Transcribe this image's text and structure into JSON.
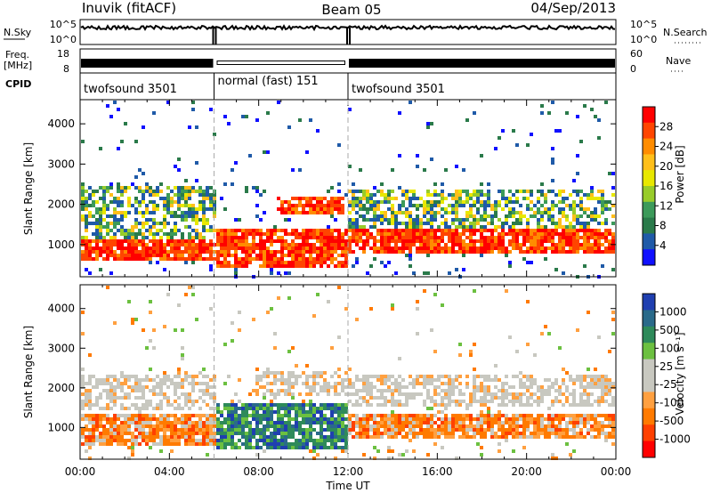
{
  "header": {
    "station": "Inuvik (fitACF)",
    "beam": "Beam 05",
    "date": "04/Sep/2013"
  },
  "noise_panel": {
    "left_label": "N.Sky",
    "left_ticks": [
      "10^5",
      "10^0"
    ],
    "right_label": "N.Search",
    "right_ticks": [
      "10^5",
      "10^0"
    ]
  },
  "freq_panel": {
    "left_label_top": "Freq.",
    "left_label_bottom": "[MHz]",
    "left_ticks": [
      "18",
      "8"
    ],
    "right_label": "Nave",
    "right_ticks": [
      "60",
      "0"
    ]
  },
  "cpid": {
    "label": "CPID",
    "segments": [
      {
        "name": "twofsound 3501",
        "start_hour": 0,
        "end_hour": 6
      },
      {
        "name": "normal (fast) 151",
        "start_hour": 6,
        "end_hour": 12
      },
      {
        "name": "twofsound 3501",
        "start_hour": 12,
        "end_hour": 24
      }
    ]
  },
  "x_axis": {
    "label": "Time UT",
    "range_hours": [
      0,
      24
    ],
    "ticks": [
      {
        "hour": 0,
        "label": "00:00"
      },
      {
        "hour": 4,
        "label": "04:00"
      },
      {
        "hour": 8,
        "label": "08:00"
      },
      {
        "hour": 12,
        "label": "12:00"
      },
      {
        "hour": 16,
        "label": "16:00"
      },
      {
        "hour": 20,
        "label": "20:00"
      },
      {
        "hour": 24,
        "label": "00:00"
      }
    ]
  },
  "chart_data": [
    {
      "type": "heatmap",
      "name": "power",
      "ylabel": "Slant Range [km]",
      "ylim": [
        200,
        4600
      ],
      "yticks": [
        1000,
        2000,
        3000,
        4000
      ],
      "colorbar_label": "Power [dB]",
      "colorbar_ticks": [
        "28",
        "24",
        "20",
        "16",
        "12",
        "8",
        "4"
      ],
      "colorbar_colors": [
        "#ff0000",
        "#ff4500",
        "#ff8c00",
        "#ffbf1a",
        "#e8e800",
        "#98cc2a",
        "#3c9a5a",
        "#2a7a4a",
        "#1f5aa8",
        "#1010ff"
      ],
      "regions": [
        {
          "t0": 0.0,
          "t1": 6.0,
          "r0": 600,
          "r1": 1200,
          "level": "high"
        },
        {
          "t0": 0.0,
          "t1": 6.0,
          "r0": 1200,
          "r1": 2500,
          "level": "mid"
        },
        {
          "t0": 6.0,
          "t1": 12.0,
          "r0": 500,
          "r1": 1400,
          "level": "high"
        },
        {
          "t0": 8.8,
          "t1": 11.7,
          "r0": 1800,
          "r1": 2200,
          "level": "high"
        },
        {
          "t0": 12.0,
          "t1": 24.0,
          "r0": 800,
          "r1": 1400,
          "level": "high"
        },
        {
          "t0": 12.0,
          "t1": 24.0,
          "r0": 1400,
          "r1": 2400,
          "level": "mid"
        }
      ]
    },
    {
      "type": "heatmap",
      "name": "velocity",
      "ylabel": "Slant Range [km]",
      "ylim": [
        200,
        4600
      ],
      "yticks": [
        1000,
        2000,
        3000,
        4000
      ],
      "colorbar_label": "Velocity [m s⁻¹]",
      "colorbar_ticks": [
        "1000",
        "500",
        "100",
        "25",
        "-25",
        "-100",
        "-500",
        "-1000"
      ],
      "colorbar_colors": [
        "#1f3fb0",
        "#2a6a8a",
        "#2e8a5a",
        "#6cc040",
        "#c8c8c0",
        "#c8c8c0",
        "#ffa040",
        "#ff7a00",
        "#ff4000",
        "#ff0000"
      ],
      "regions": [
        {
          "t0": 0.0,
          "t1": 6.0,
          "r0": 600,
          "r1": 1400,
          "level": "negative"
        },
        {
          "t0": 0.0,
          "t1": 6.0,
          "r0": 1500,
          "r1": 2400,
          "level": "ground"
        },
        {
          "t0": 6.0,
          "t1": 12.0,
          "r0": 500,
          "r1": 1700,
          "level": "positive"
        },
        {
          "t0": 7.8,
          "t1": 12.0,
          "r0": 1800,
          "r1": 2500,
          "level": "ground"
        },
        {
          "t0": 12.0,
          "t1": 24.0,
          "r0": 800,
          "r1": 1400,
          "level": "negative"
        },
        {
          "t0": 12.0,
          "t1": 24.0,
          "r0": 1600,
          "r1": 2400,
          "level": "ground"
        }
      ]
    }
  ]
}
